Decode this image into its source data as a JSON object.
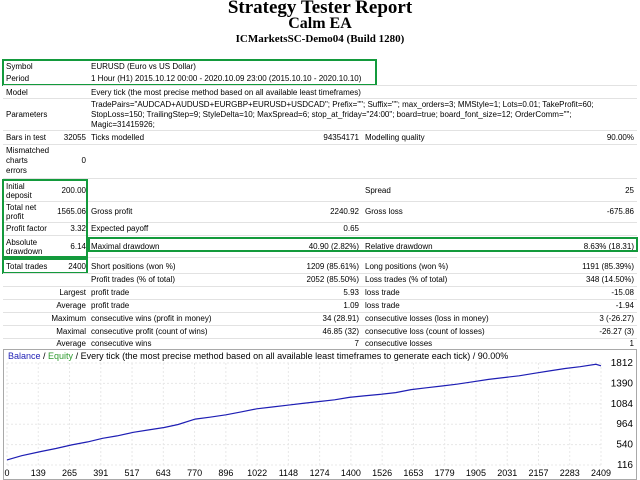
{
  "header": {
    "title": "Strategy Tester Report",
    "ea_name": "Calm EA",
    "server_build": "ICMarketsSC-Demo04 (Build 1280)"
  },
  "settings": {
    "symbol_label": "Symbol",
    "symbol_value": "EURUSD (Euro vs US Dollar)",
    "period_label": "Period",
    "period_value": "1 Hour (H1) 2015.10.12 00:00 - 2020.10.09 23:00 (2015.10.10 - 2020.10.10)",
    "model_label": "Model",
    "model_value": "Every tick (the most precise method based on all available least timeframes)",
    "parameters_label": "Parameters",
    "parameters_line1": "TradePairs=\"AUDCAD+AUDUSD+EURGBP+EURUSD+USDCAD\"; Prefix=\"\"; Suffix=\"\"; max_orders=3; MMStyle=1; Lots=0.01; TakeProfit=60;",
    "parameters_line2": "StopLoss=150; TrailingStep=9; StyleDelta=10; MaxSpread=6; stop_at_friday=\"24:00\"; board=true; board_font_size=12; OrderComm=\"\";",
    "parameters_line3": "Magic=31415926;"
  },
  "stats": {
    "bars_label": "Bars in test",
    "bars_value": "32055",
    "ticks_label": "Ticks modelled",
    "ticks_value": "94354171",
    "quality_label": "Modelling quality",
    "quality_value": "90.00%",
    "mismatch_label1": "Mismatched",
    "mismatch_label2": "charts",
    "mismatch_label3": "errors",
    "mismatch_value": "0",
    "deposit_label1": "Initial",
    "deposit_label2": "deposit",
    "deposit_value": "200.00",
    "spread_label": "Spread",
    "spread_value": "25",
    "netprofit_label1": "Total net",
    "netprofit_label2": "profit",
    "netprofit_value": "1565.06",
    "grossprofit_label": "Gross profit",
    "grossprofit_value": "2240.92",
    "grossloss_label": "Gross loss",
    "grossloss_value": "-675.86",
    "pf_label": "Profit factor",
    "pf_value": "3.32",
    "ep_label": "Expected payoff",
    "ep_value": "0.65",
    "absdd_label1": "Absolute",
    "absdd_label2": "drawdown",
    "absdd_value": "6.14",
    "maxdd_label": "Maximal drawdown",
    "maxdd_value": "40.90 (2.82%)",
    "reldd_label": "Relative drawdown",
    "reldd_value": "8.63% (18.31)",
    "tt_label": "Total trades",
    "tt_value": "2400",
    "short_label": "Short positions (won %)",
    "short_value": "1209 (85.61%)",
    "long_label": "Long positions (won %)",
    "long_value": "1191 (85.39%)",
    "pt_label": "Profit trades (% of total)",
    "pt_value": "2052 (85.50%)",
    "lt_label": "Loss trades (% of total)",
    "lt_value": "348 (14.50%)",
    "largest_label": "Largest",
    "largest_pt_label": "profit trade",
    "largest_pt_value": "5.93",
    "largest_lt_label": "loss trade",
    "largest_lt_value": "-15.08",
    "average_label": "Average",
    "average_pt_label": "profit trade",
    "average_pt_value": "1.09",
    "average_lt_label": "loss trade",
    "average_lt_value": "-1.94",
    "maximum_label": "Maximum",
    "max_cw_label": "consecutive wins (profit in money)",
    "max_cw_value": "34 (28.91)",
    "max_cl_label": "consecutive losses (loss in money)",
    "max_cl_value": "3 (-26.27)",
    "maximal_label": "Maximal",
    "mx_cp_label": "consecutive profit (count of wins)",
    "mx_cp_value": "46.85 (32)",
    "mx_cl_label": "consecutive loss (count of losses)",
    "mx_cl_value": "-26.27 (3)",
    "avg2_label": "Average",
    "avg_cw_label": "consecutive wins",
    "avg_cw_value": "7",
    "avg_cl_label": "consecutive losses",
    "avg_cl_value": "1"
  },
  "chart_legend": {
    "balance": "Balance",
    "sep1": " / ",
    "equity": "Equity",
    "rest": " / Every tick (the most precise method based on all available least timeframes to generate each tick) / 90.00%"
  },
  "colors": {
    "balance": "#1e1eb4",
    "equity": "#2e9a2e",
    "highlight": "#139a3c"
  },
  "chart_data": {
    "type": "line",
    "title": "",
    "xlabel": "",
    "ylabel": "",
    "x_ticks": [
      "0",
      "139",
      "265",
      "391",
      "517",
      "643",
      "770",
      "896",
      "1022",
      "1148",
      "1274",
      "1400",
      "1526",
      "1653",
      "1779",
      "1905",
      "2031",
      "2157",
      "2283",
      "2409"
    ],
    "y_ticks": [
      "1812",
      "1390",
      "1084",
      "964",
      "540",
      "116"
    ],
    "xlim": [
      0,
      2430
    ],
    "ylim": [
      116,
      1812
    ],
    "series": [
      {
        "name": "Balance",
        "x": [
          0,
          60,
          139,
          200,
          265,
          330,
          391,
          450,
          517,
          580,
          643,
          700,
          770,
          830,
          896,
          960,
          1022,
          1085,
          1148,
          1210,
          1274,
          1340,
          1400,
          1460,
          1526,
          1590,
          1653,
          1715,
          1779,
          1840,
          1905,
          1970,
          2031,
          2095,
          2157,
          2220,
          2283,
          2345,
          2409,
          2430
        ],
        "y": [
          200,
          270,
          340,
          390,
          450,
          500,
          560,
          600,
          660,
          700,
          740,
          790,
          880,
          910,
          950,
          1000,
          1050,
          1080,
          1110,
          1140,
          1170,
          1200,
          1240,
          1265,
          1290,
          1320,
          1370,
          1400,
          1430,
          1460,
          1500,
          1540,
          1570,
          1600,
          1640,
          1680,
          1720,
          1750,
          1790,
          1765
        ]
      }
    ]
  }
}
